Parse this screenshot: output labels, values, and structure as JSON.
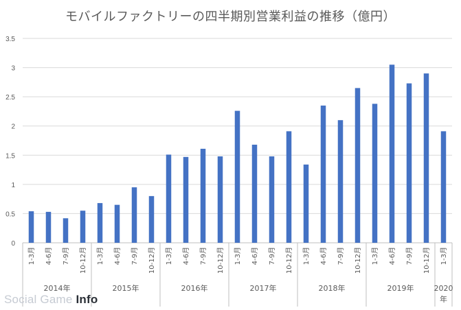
{
  "chart_data": {
    "type": "bar",
    "title": "モバイルファクトリーの四半期別営業利益の推移（億円）",
    "xlabel": "",
    "ylabel": "",
    "ylim": [
      0,
      3.5
    ],
    "yticks": [
      "0",
      "0.5",
      "1",
      "1.5",
      "2",
      "2.5",
      "3",
      "3.5"
    ],
    "grid": true,
    "legend": "none",
    "color": "#4472c4",
    "groups": [
      {
        "label": "2014年",
        "categories": [
          "1-3月",
          "4-6月",
          "7-9月",
          "10-12月"
        ],
        "values": [
          0.54,
          0.53,
          0.42,
          0.55
        ]
      },
      {
        "label": "2015年",
        "categories": [
          "1-3月",
          "4-6月",
          "7-9月",
          "10-12月"
        ],
        "values": [
          0.68,
          0.65,
          0.95,
          0.8
        ]
      },
      {
        "label": "2016年",
        "categories": [
          "1-3月",
          "4-6月",
          "7-9月",
          "10-12月"
        ],
        "values": [
          1.51,
          1.47,
          1.61,
          1.48
        ]
      },
      {
        "label": "2017年",
        "categories": [
          "1-3月",
          "4-6月",
          "7-9月",
          "10-12月"
        ],
        "values": [
          2.26,
          1.68,
          1.48,
          1.91
        ]
      },
      {
        "label": "2018年",
        "categories": [
          "1-3月",
          "4-6月",
          "7-9月",
          "10-12月"
        ],
        "values": [
          1.34,
          2.35,
          2.1,
          2.65
        ]
      },
      {
        "label": "2019年",
        "categories": [
          "1-3月",
          "4-6月",
          "7-9月",
          "10-12月"
        ],
        "values": [
          2.38,
          3.05,
          2.73,
          2.9
        ]
      },
      {
        "label": "2020年",
        "categories": [
          "1-3月"
        ],
        "values": [
          1.91
        ]
      }
    ]
  },
  "watermark": {
    "part1": "Social Game ",
    "part2": "Info"
  }
}
